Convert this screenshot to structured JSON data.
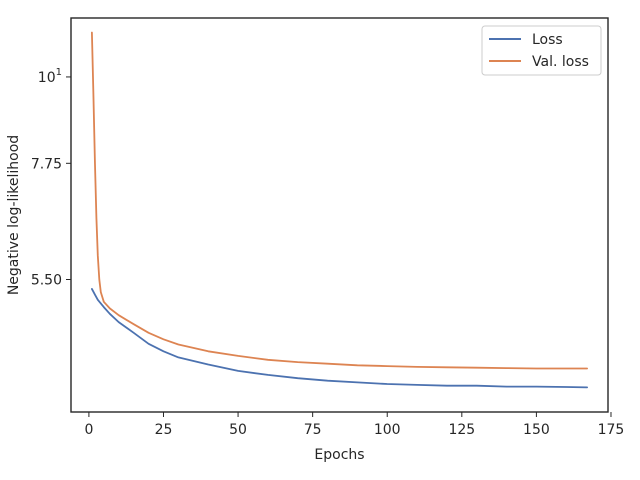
{
  "chart_data": {
    "type": "line",
    "title": "",
    "xlabel": "Epochs",
    "ylabel": "Negative log-likelihood",
    "y_scale": "log",
    "xlim": [
      -6,
      174
    ],
    "ylim": [
      3.72,
      11.9
    ],
    "x_ticks": [
      0,
      25,
      50,
      75,
      100,
      125,
      150,
      175
    ],
    "y_ticks": [
      {
        "value": 10,
        "label_base": "10",
        "label_exp": "1"
      },
      {
        "value": 7.75,
        "label": "7.75"
      },
      {
        "value": 5.5,
        "label": "5.50"
      }
    ],
    "grid": false,
    "legend_position": "top-right",
    "series": [
      {
        "name": "Loss",
        "color": "#4c72b0",
        "x": [
          1,
          2,
          3,
          5,
          7,
          10,
          15,
          20,
          25,
          30,
          40,
          50,
          60,
          70,
          80,
          90,
          100,
          110,
          120,
          130,
          140,
          150,
          160,
          167
        ],
        "y": [
          5.35,
          5.26,
          5.18,
          5.07,
          4.97,
          4.85,
          4.7,
          4.55,
          4.45,
          4.37,
          4.28,
          4.2,
          4.15,
          4.11,
          4.08,
          4.06,
          4.04,
          4.03,
          4.02,
          4.02,
          4.01,
          4.01,
          4.005,
          4.0
        ]
      },
      {
        "name": "Val. loss",
        "color": "#dd8452",
        "x": [
          1,
          1.5,
          2,
          2.5,
          3,
          3.5,
          4,
          5,
          7,
          10,
          15,
          20,
          25,
          30,
          40,
          50,
          60,
          70,
          80,
          90,
          100,
          110,
          120,
          130,
          140,
          150,
          160,
          167
        ],
        "y": [
          11.4,
          9.5,
          7.8,
          6.6,
          5.9,
          5.5,
          5.3,
          5.15,
          5.05,
          4.95,
          4.82,
          4.7,
          4.61,
          4.54,
          4.45,
          4.39,
          4.34,
          4.31,
          4.29,
          4.27,
          4.26,
          4.25,
          4.245,
          4.24,
          4.235,
          4.23,
          4.23,
          4.23
        ]
      }
    ]
  }
}
